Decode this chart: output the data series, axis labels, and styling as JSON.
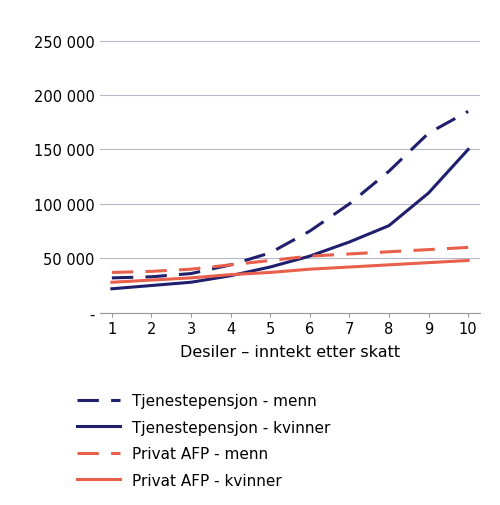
{
  "x": [
    1,
    2,
    3,
    4,
    5,
    6,
    7,
    8,
    9,
    10
  ],
  "tjeneste_menn": [
    32000,
    33000,
    36000,
    44000,
    55000,
    75000,
    100000,
    130000,
    165000,
    185000
  ],
  "tjeneste_kvinner": [
    22000,
    25000,
    28000,
    34000,
    42000,
    52000,
    65000,
    80000,
    110000,
    150000
  ],
  "afp_menn": [
    37000,
    38000,
    40000,
    44000,
    48000,
    52000,
    54000,
    56000,
    58000,
    60000
  ],
  "afp_kvinner": [
    28000,
    30000,
    32000,
    35000,
    37000,
    40000,
    42000,
    44000,
    46000,
    48000
  ],
  "color_dark_blue": "#1f1f6e",
  "color_red": "#e8604c",
  "xlabel": "Desiler – inntekt etter skatt",
  "yticks": [
    0,
    50000,
    100000,
    150000,
    200000,
    250000
  ],
  "ytick_labels": [
    "-",
    "50 000",
    "100 000",
    "150 000",
    "200 000",
    "250 000"
  ],
  "ylim": [
    0,
    265000
  ],
  "xlim": [
    0.7,
    10.3
  ],
  "xticks": [
    1,
    2,
    3,
    4,
    5,
    6,
    7,
    8,
    9,
    10
  ],
  "legend_labels": [
    "Tjenestepensjon - menn",
    "Tjenestepensjon - kvinner",
    "Privat AFP - menn",
    "Privat AFP - kvinner"
  ],
  "grid_color": "#b8b8cc",
  "background_color": "#ffffff",
  "line_width": 2.2,
  "legend_fontsize": 11,
  "tick_fontsize": 10.5,
  "xlabel_fontsize": 11.5
}
